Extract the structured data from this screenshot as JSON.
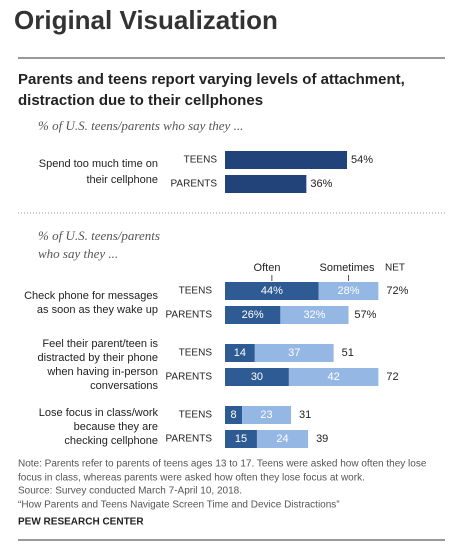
{
  "header": "Original Visualization",
  "chart_data": [
    {
      "type": "bar",
      "title": [
        "Parents and teens report varying levels of attachment,",
        "distraction due to their cellphones"
      ],
      "subtitle": "% of U.S. teens/parents who say they ...",
      "color": "#22427a",
      "groups": [
        {
          "label": [
            "Spend too much time on",
            "their cellphone"
          ],
          "categories": [
            "TEENS",
            "PARENTS"
          ],
          "values": [
            54,
            36
          ],
          "value_labels": [
            "54%",
            "36%"
          ]
        }
      ]
    },
    {
      "type": "stacked_bar",
      "subtitle": [
        "% of U.S. teens/parents",
        "who say they ..."
      ],
      "groups": [
        {
          "label": [
            "Check phone for messages",
            "as soon as they wake up"
          ],
          "categories": [
            "TEENS",
            "PARENTS"
          ]
        },
        {
          "label": [
            "Feel their parent/teen is",
            "distracted by their phone",
            "when having in-person",
            "conversations"
          ],
          "categories": [
            "TEENS",
            "PARENTS"
          ]
        },
        {
          "label": [
            "Lose focus in class/work",
            "because they are",
            "checking cellphone"
          ],
          "categories": [
            "TEENS",
            "PARENTS"
          ]
        }
      ],
      "series": [
        {
          "name": "Often",
          "color": "#2f5b94",
          "values": [
            [
              44,
              26
            ],
            [
              14,
              30
            ],
            [
              8,
              15
            ]
          ],
          "value_labels": [
            [
              "44%",
              "26%"
            ],
            [
              "14",
              "30"
            ],
            [
              "8",
              "15"
            ]
          ]
        },
        {
          "name": "Sometimes",
          "color": "#94b7e4",
          "values": [
            [
              28,
              32
            ],
            [
              37,
              42
            ],
            [
              23,
              24
            ]
          ],
          "value_labels": [
            [
              "28%",
              "32%"
            ],
            [
              "37",
              "42"
            ],
            [
              "23",
              "24"
            ]
          ]
        }
      ],
      "net": {
        "name": "NET",
        "values": [
          [
            72,
            57
          ],
          [
            51,
            72
          ],
          [
            31,
            39
          ]
        ],
        "value_labels": [
          [
            "72%",
            "57%"
          ],
          [
            "51",
            "72"
          ],
          [
            "31",
            "39"
          ]
        ]
      }
    }
  ],
  "notes": [
    "Note: Parents refer to parents of teens ages 13 to 17. Teens were asked how often they lose",
    "focus in class, whereas parents were asked how often they lose focus at work.",
    "Source: Survey conducted March 7-April 10, 2018.",
    "“How Parents and Teens Navigate Screen Time and Device Distractions”"
  ],
  "footer": "PEW RESEARCH CENTER"
}
